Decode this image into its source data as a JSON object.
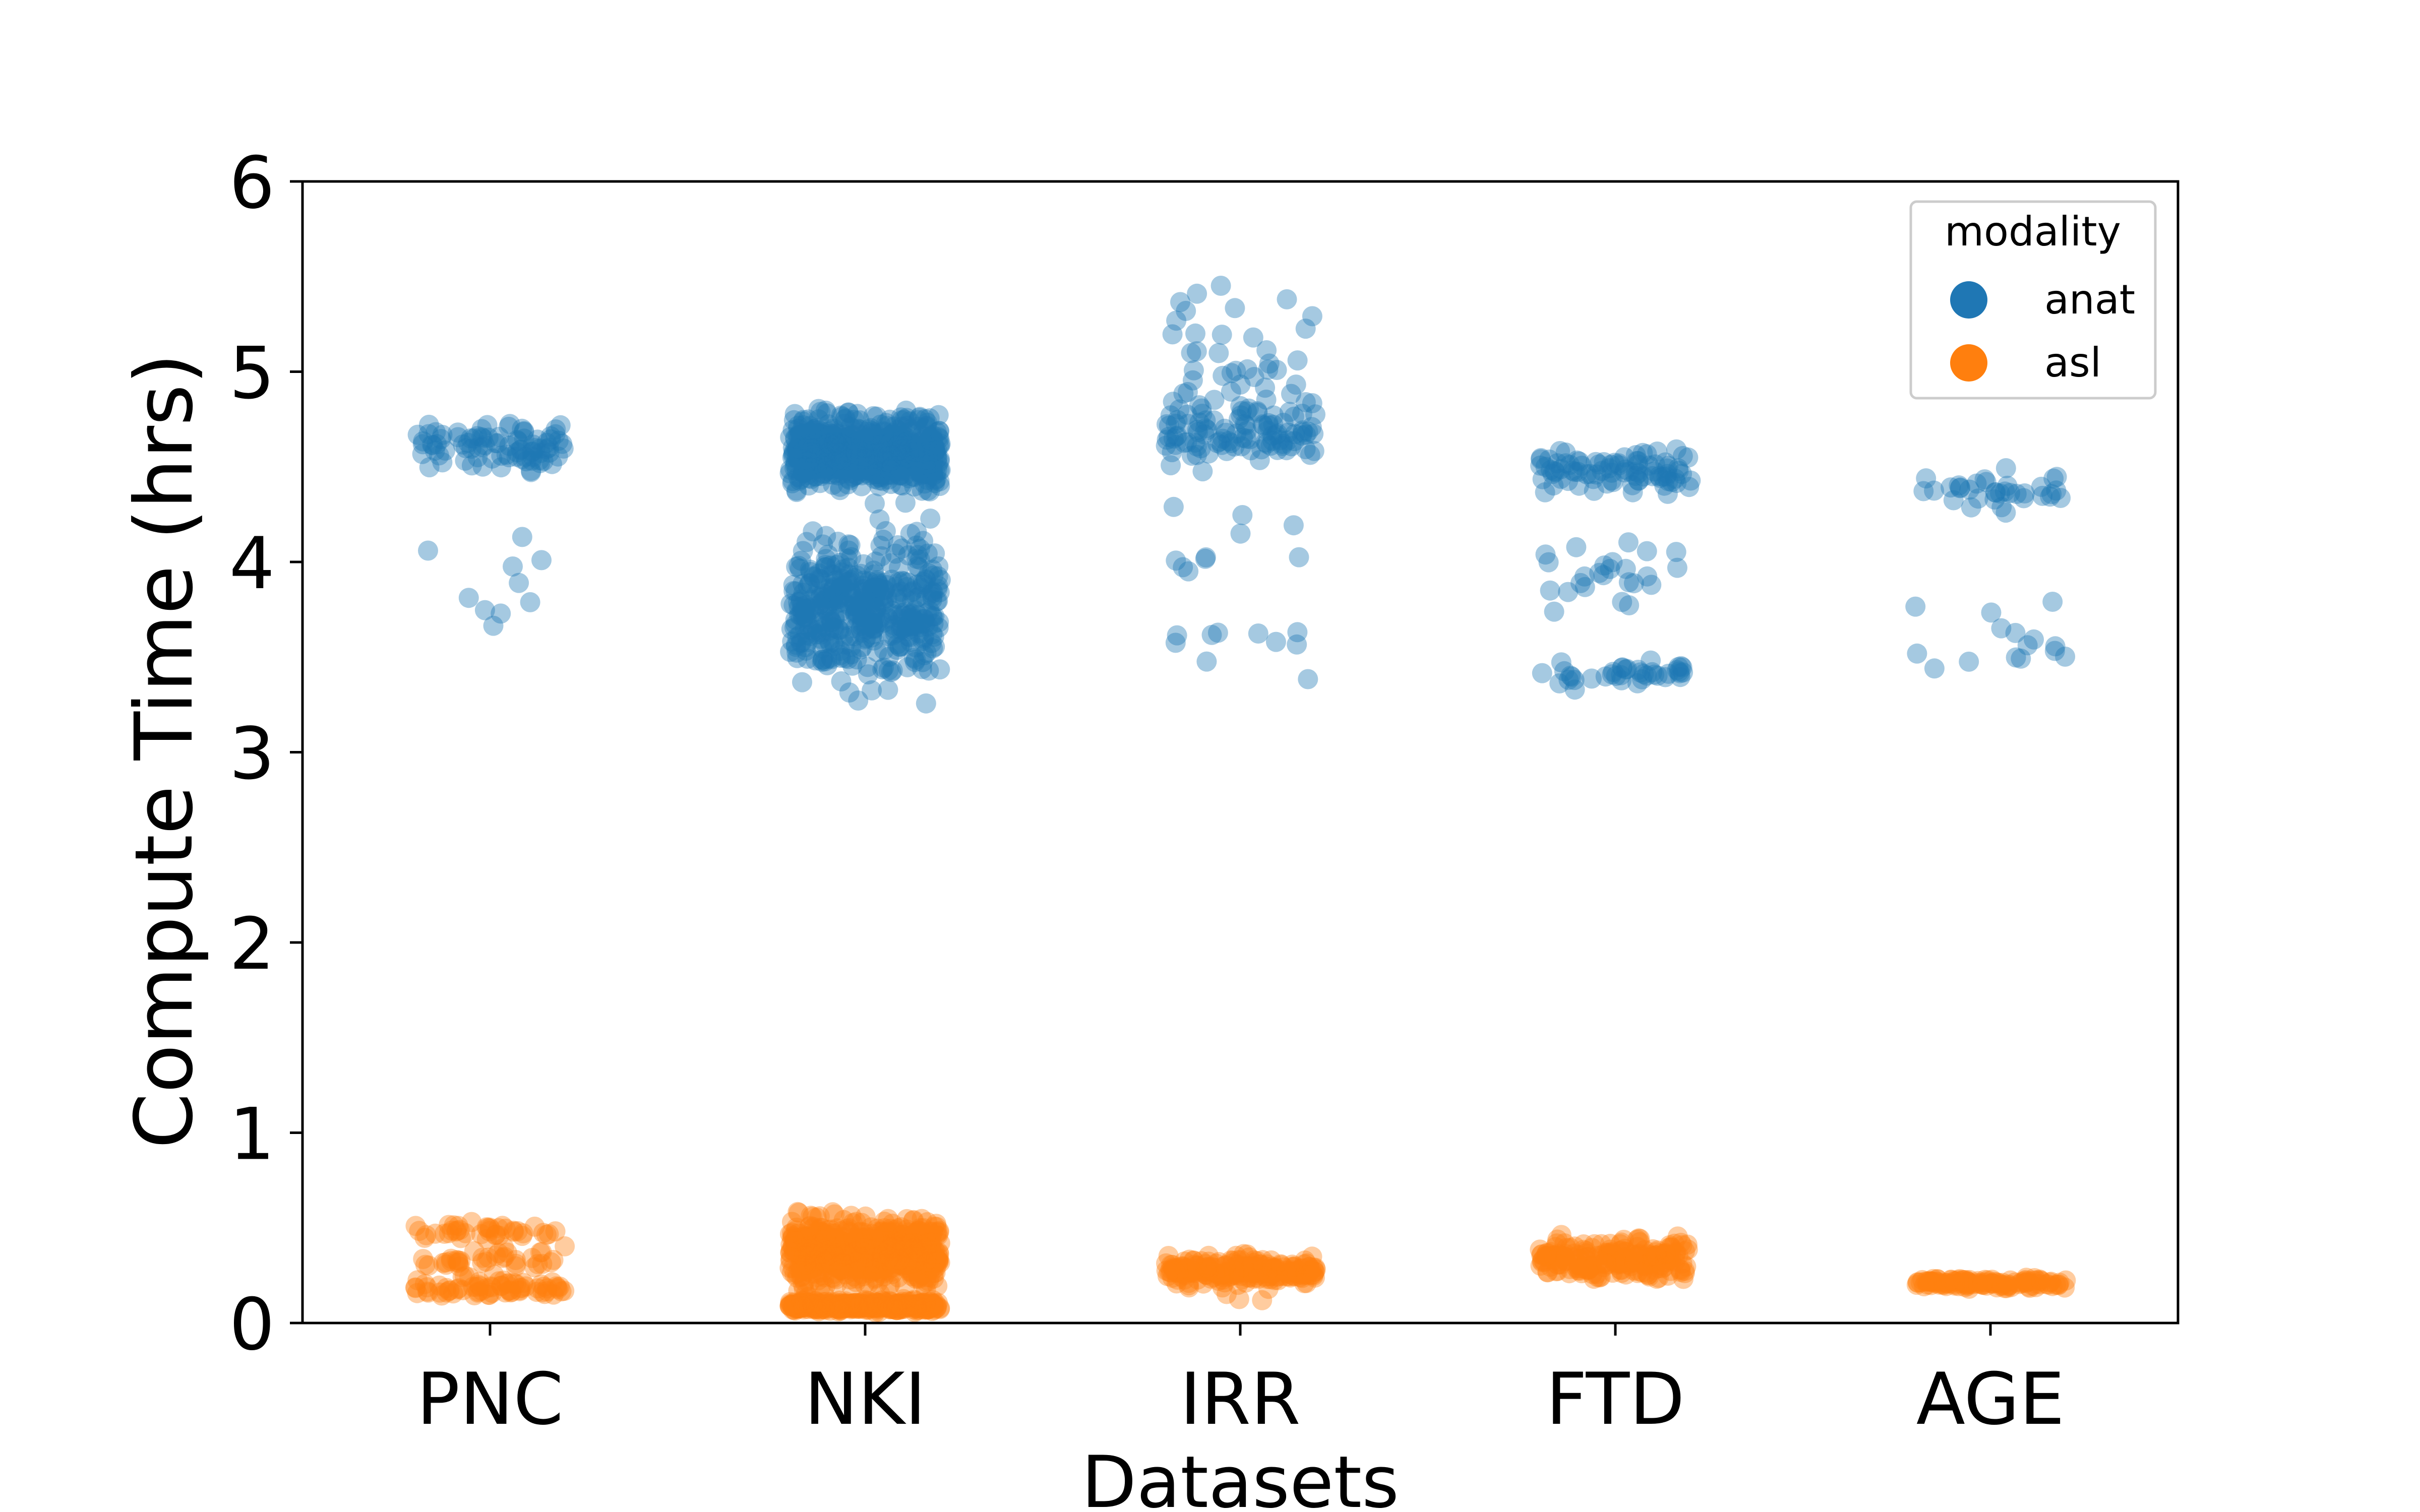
{
  "chart_data": {
    "type": "scatter",
    "subtype": "strip",
    "title": "",
    "xlabel": "Datasets",
    "ylabel": "Compute Time (hrs)",
    "categories": [
      "PNC",
      "NKI",
      "IRR",
      "FTD",
      "AGE"
    ],
    "ylim": [
      0,
      6
    ],
    "yticks": [
      "0",
      "1",
      "2",
      "3",
      "4",
      "5",
      "6"
    ],
    "grid": false,
    "legend": {
      "title": "modality",
      "placement": "top-right"
    },
    "series": [
      {
        "name": "anat",
        "color": "#1f77b4",
        "clusters": [
          {
            "category": "PNC",
            "count": 90,
            "center": 4.61,
            "spread": 0.07
          },
          {
            "category": "PNC",
            "count": 10,
            "center": 3.88,
            "spread": 0.16
          },
          {
            "category": "NKI",
            "count": 700,
            "center": 4.58,
            "spread": 0.09
          },
          {
            "category": "NKI",
            "count": 420,
            "center": 3.74,
            "spread": 0.16
          },
          {
            "category": "NKI",
            "count": 12,
            "center": 4.12,
            "spread": 0.06
          },
          {
            "category": "IRR",
            "count": 110,
            "center": 4.69,
            "spread": 0.08
          },
          {
            "category": "IRR",
            "count": 35,
            "center": 5.1,
            "spread": 0.2
          },
          {
            "category": "IRR",
            "count": 10,
            "center": 4.12,
            "spread": 0.12
          },
          {
            "category": "IRR",
            "count": 10,
            "center": 3.57,
            "spread": 0.08
          },
          {
            "category": "FTD",
            "count": 90,
            "center": 4.48,
            "spread": 0.05
          },
          {
            "category": "FTD",
            "count": 25,
            "center": 3.9,
            "spread": 0.1
          },
          {
            "category": "FTD",
            "count": 40,
            "center": 3.42,
            "spread": 0.03
          },
          {
            "category": "AGE",
            "count": 35,
            "center": 4.37,
            "spread": 0.05
          },
          {
            "category": "AGE",
            "count": 15,
            "center": 3.56,
            "spread": 0.12
          }
        ]
      },
      {
        "name": "asl",
        "color": "#ff7f0e",
        "clusters": [
          {
            "category": "PNC",
            "count": 70,
            "center": 0.18,
            "spread": 0.02
          },
          {
            "category": "PNC",
            "count": 40,
            "center": 0.48,
            "spread": 0.02
          },
          {
            "category": "PNC",
            "count": 40,
            "center": 0.34,
            "spread": 0.05
          },
          {
            "category": "NKI",
            "count": 700,
            "center": 0.37,
            "spread": 0.08
          },
          {
            "category": "NKI",
            "count": 400,
            "center": 0.09,
            "spread": 0.012
          },
          {
            "category": "IRR",
            "count": 220,
            "center": 0.28,
            "spread": 0.035
          },
          {
            "category": "IRR",
            "count": 6,
            "center": 0.16,
            "spread": 0.03
          },
          {
            "category": "FTD",
            "count": 220,
            "center": 0.34,
            "spread": 0.05
          },
          {
            "category": "AGE",
            "count": 120,
            "center": 0.21,
            "spread": 0.012
          }
        ]
      }
    ]
  }
}
